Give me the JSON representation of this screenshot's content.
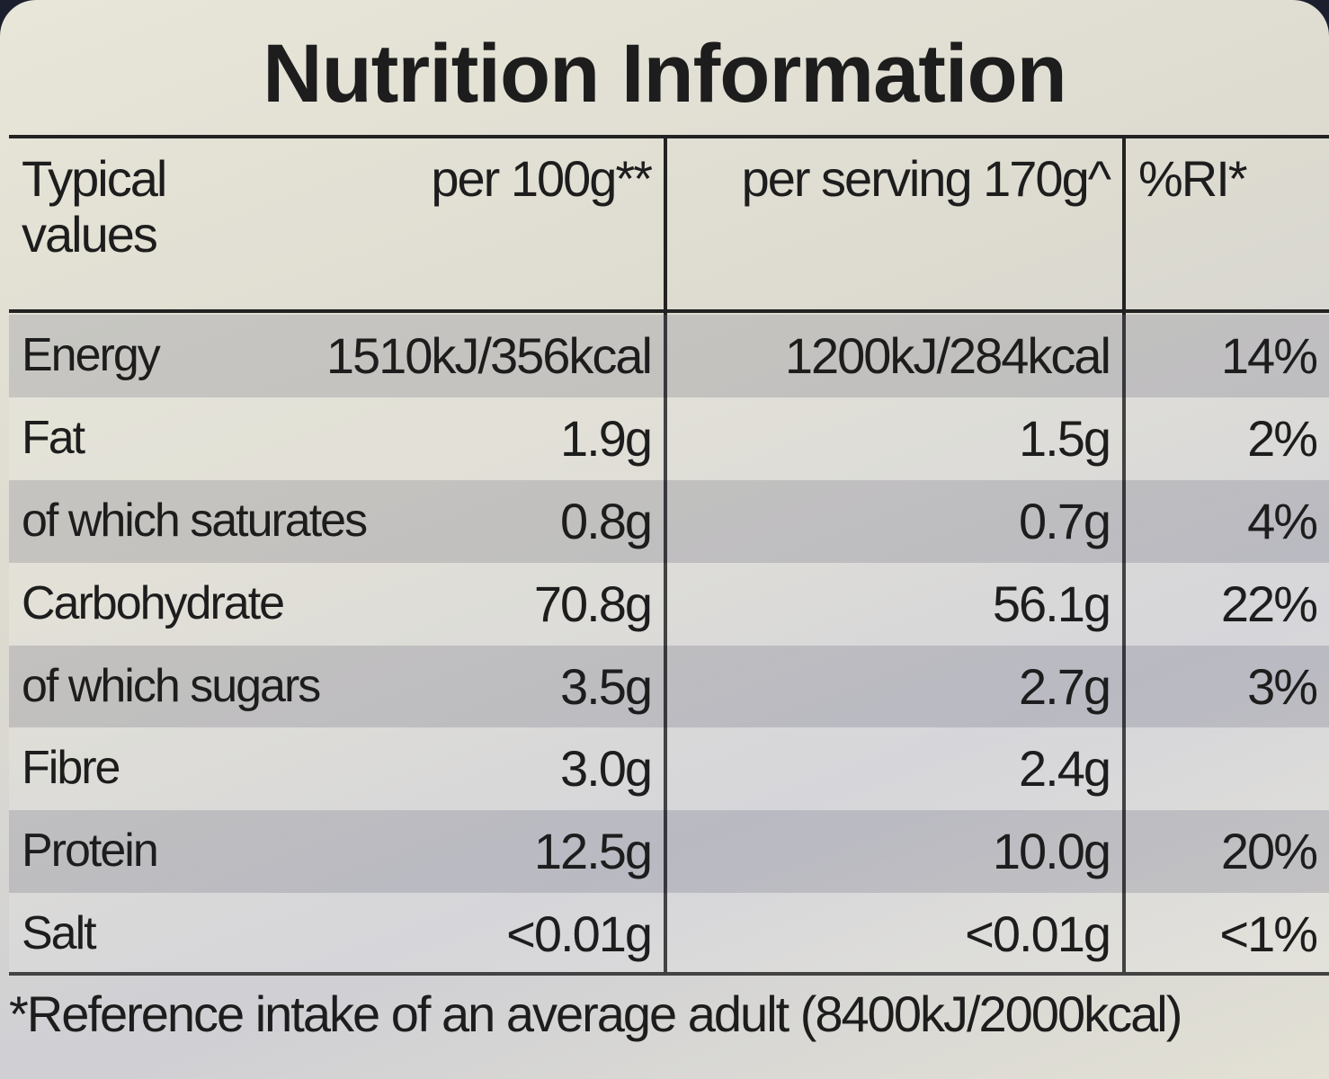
{
  "title": "Nutrition Information",
  "table": {
    "header": [
      "Typical values",
      "per 100g**",
      "per serving 170g^",
      "%RI*"
    ],
    "rows": [
      [
        "Energy",
        "1510kJ/356kcal",
        "1200kJ/284kcal",
        "14%"
      ],
      [
        "Fat",
        "1.9g",
        "1.5g",
        "2%"
      ],
      [
        "of which saturates",
        "0.8g",
        "0.7g",
        "4%"
      ],
      [
        "Carbohydrate",
        "70.8g",
        "56.1g",
        "22%"
      ],
      [
        "of which sugars",
        "3.5g",
        "2.7g",
        "3%"
      ],
      [
        "Fibre",
        "3.0g",
        "2.4g"
      ],
      [
        "Protein",
        "12.5g",
        "10.0g",
        "20%"
      ],
      [
        "Salt",
        "<0.01g",
        "<0.01g",
        "<1%"
      ]
    ]
  },
  "footnote": "*Reference intake of an average adult (8400kJ/2000kcal)"
}
